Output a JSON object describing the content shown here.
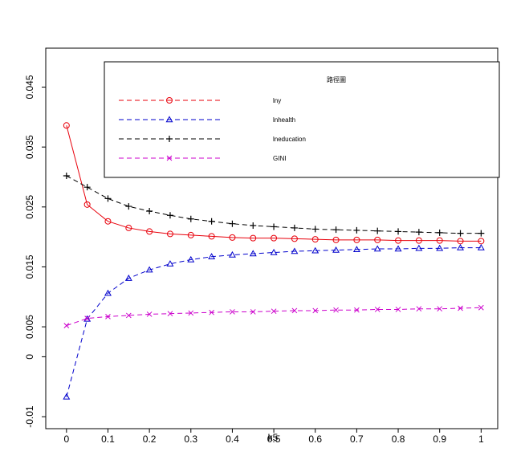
{
  "chart_data": {
    "type": "line",
    "title": "",
    "xlabel": "k5",
    "ylabel": "",
    "xlim": [
      -0.05,
      1.04
    ],
    "ylim": [
      -0.012,
      0.0515
    ],
    "x_ticks": [
      "0",
      "0.1",
      "0.2",
      "0.3",
      "0.4",
      "0.5",
      "0.6",
      "0.7",
      "0.8",
      "0.9",
      "1"
    ],
    "y_ticks": [
      "-0.01",
      "0",
      "0.005",
      "0.015",
      "0.025",
      "0.035",
      "0.045"
    ],
    "y_tick_values": [
      -0.01,
      0,
      0.005,
      0.015,
      0.025,
      0.035,
      0.045
    ],
    "grid": false,
    "legend": {
      "title": "路徑圖",
      "placement": "top-right"
    },
    "x": [
      0,
      0.05,
      0.1,
      0.15,
      0.2,
      0.25,
      0.3,
      0.35,
      0.4,
      0.45,
      0.5,
      0.55,
      0.6,
      0.65,
      0.7,
      0.75,
      0.8,
      0.85,
      0.9,
      0.95,
      1
    ],
    "series": [
      {
        "name": "lny",
        "color": "#e8000b",
        "line": "solid",
        "legend_line": "dashed",
        "marker": "circle",
        "values": [
          0.0386,
          0.0254,
          0.0226,
          0.0215,
          0.0209,
          0.0205,
          0.0203,
          0.0201,
          0.0199,
          0.0198,
          0.0198,
          0.0197,
          0.0196,
          0.0195,
          0.0195,
          0.0195,
          0.0194,
          0.0194,
          0.0194,
          0.0193,
          0.0193
        ]
      },
      {
        "name": "lnhealth",
        "color": "#0000cc",
        "line": "dashed",
        "legend_line": "dashed",
        "marker": "triangle",
        "values": [
          -0.0067,
          0.0063,
          0.0106,
          0.0131,
          0.0145,
          0.0155,
          0.0162,
          0.0167,
          0.017,
          0.0172,
          0.0174,
          0.0176,
          0.0177,
          0.0178,
          0.0179,
          0.018,
          0.018,
          0.0181,
          0.0181,
          0.0182,
          0.0182
        ]
      },
      {
        "name": "lneducation",
        "color": "#000000",
        "line": "dashed",
        "legend_line": "dashed",
        "marker": "plus",
        "values": [
          0.0302,
          0.0283,
          0.0264,
          0.0251,
          0.0243,
          0.0236,
          0.023,
          0.0226,
          0.0222,
          0.0219,
          0.0217,
          0.0215,
          0.0213,
          0.0212,
          0.0211,
          0.021,
          0.0209,
          0.0208,
          0.0207,
          0.0206,
          0.0206
        ]
      },
      {
        "name": "GINI",
        "color": "#cc00cc",
        "line": "dashed",
        "legend_line": "dashed",
        "marker": "cross",
        "values": [
          0.0052,
          0.0064,
          0.0067,
          0.0069,
          0.0071,
          0.0072,
          0.0073,
          0.0074,
          0.0075,
          0.0075,
          0.0076,
          0.0077,
          0.0077,
          0.0078,
          0.0078,
          0.0079,
          0.0079,
          0.008,
          0.008,
          0.0081,
          0.0082
        ]
      }
    ]
  }
}
